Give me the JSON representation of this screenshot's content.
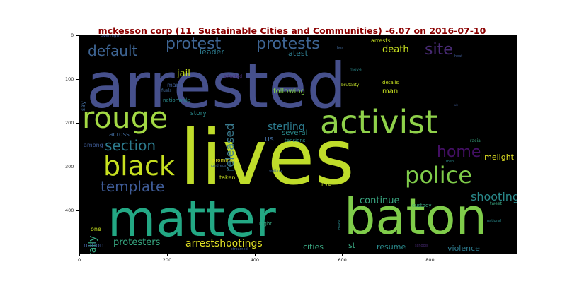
{
  "chart_data": {
    "type": "wordcloud",
    "title": "mckesson corp (11. Sustainable Cities and Communities) -6.07 on 2016-07-10",
    "xlim": [
      0,
      1000
    ],
    "ylim": [
      500,
      0
    ],
    "x_ticks": [
      "0",
      "200",
      "400",
      "600",
      "800"
    ],
    "y_ticks": [
      "0",
      "100",
      "200",
      "300",
      "400"
    ],
    "background": "#000000",
    "words": [
      {
        "text": "arrested"
      },
      {
        "text": "lives"
      },
      {
        "text": "matter"
      },
      {
        "text": "baton"
      },
      {
        "text": "activist"
      },
      {
        "text": "rouge"
      },
      {
        "text": "police"
      },
      {
        "text": "black"
      },
      {
        "text": "protest"
      },
      {
        "text": "protests"
      },
      {
        "text": "site"
      },
      {
        "text": "default"
      },
      {
        "text": "section"
      },
      {
        "text": "template"
      },
      {
        "text": "home"
      },
      {
        "text": "shooting"
      },
      {
        "text": "released"
      },
      {
        "text": "arrestshootings"
      },
      {
        "text": "protesters"
      },
      {
        "text": "sterling"
      },
      {
        "text": "rally"
      },
      {
        "text": "continue"
      },
      {
        "text": "death"
      },
      {
        "text": "jail"
      },
      {
        "text": "leader"
      },
      {
        "text": "latest"
      },
      {
        "text": "limelight"
      },
      {
        "text": "resume"
      },
      {
        "text": "cities"
      },
      {
        "text": "violence"
      },
      {
        "text": "st"
      },
      {
        "text": "us"
      },
      {
        "text": "several"
      },
      {
        "text": "following"
      },
      {
        "text": "man"
      },
      {
        "text": "story"
      },
      {
        "text": "across"
      },
      {
        "text": "among"
      },
      {
        "text": "mans"
      },
      {
        "text": "nationwide"
      },
      {
        "text": "arrests"
      },
      {
        "text": "details"
      },
      {
        "text": "brutality"
      },
      {
        "text": "move"
      },
      {
        "text": "nation"
      },
      {
        "text": "one"
      },
      {
        "text": "live"
      },
      {
        "text": "custody"
      },
      {
        "text": "taken"
      },
      {
        "text": "prominent"
      },
      {
        "text": "night"
      },
      {
        "text": "tensions"
      },
      {
        "text": "racial"
      },
      {
        "text": "men"
      },
      {
        "text": "tweet"
      },
      {
        "text": "say"
      },
      {
        "text": "overnight"
      },
      {
        "text": "attacked"
      },
      {
        "text": "fuels"
      },
      {
        "text": "hundreds"
      },
      {
        "text": "waiting"
      },
      {
        "text": "streamed"
      },
      {
        "text": "schools"
      },
      {
        "text": "made"
      },
      {
        "text": "national"
      },
      {
        "text": "heat"
      },
      {
        "text": "uk"
      },
      {
        "text": "bos"
      }
    ]
  }
}
